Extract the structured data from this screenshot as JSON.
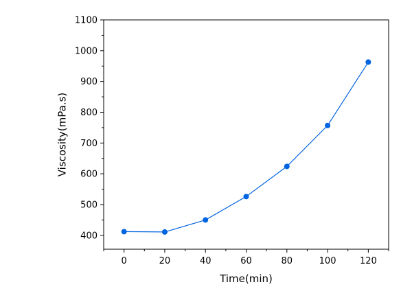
{
  "chart_data": {
    "type": "line",
    "title": "",
    "xlabel": "Time(min)",
    "ylabel": "Viscosity(mPa.s)",
    "xlim": [
      -10,
      130
    ],
    "ylim": [
      355,
      1100
    ],
    "x_ticks": [
      0,
      20,
      40,
      60,
      80,
      100,
      120
    ],
    "y_ticks": [
      400,
      500,
      600,
      700,
      800,
      900,
      1000,
      1100
    ],
    "grid": false,
    "legend": "none",
    "series": [
      {
        "x": [
          0,
          20,
          40,
          60,
          80,
          100,
          120
        ],
        "y": [
          412,
          411,
          450,
          526,
          624,
          757,
          963
        ],
        "color": "#0064e0"
      }
    ]
  }
}
